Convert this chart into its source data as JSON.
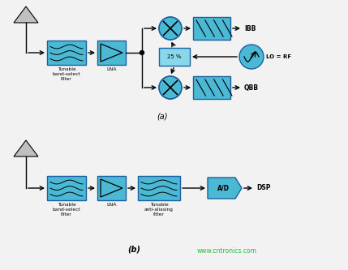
{
  "bg_color": "#f2f2f2",
  "block_color": "#4bb8d4",
  "block_edge": "#1a5fa0",
  "pct_color": "#88d8ec",
  "arrow_color": "#000000",
  "text_color": "#000000",
  "ant_color": "#c0c0c0",
  "label_a": "(a)",
  "label_b": "(b)",
  "watermark": "www.cntronics.com",
  "watermark_color": "#22bb44",
  "lna_tri_color": "#4bb8d4"
}
